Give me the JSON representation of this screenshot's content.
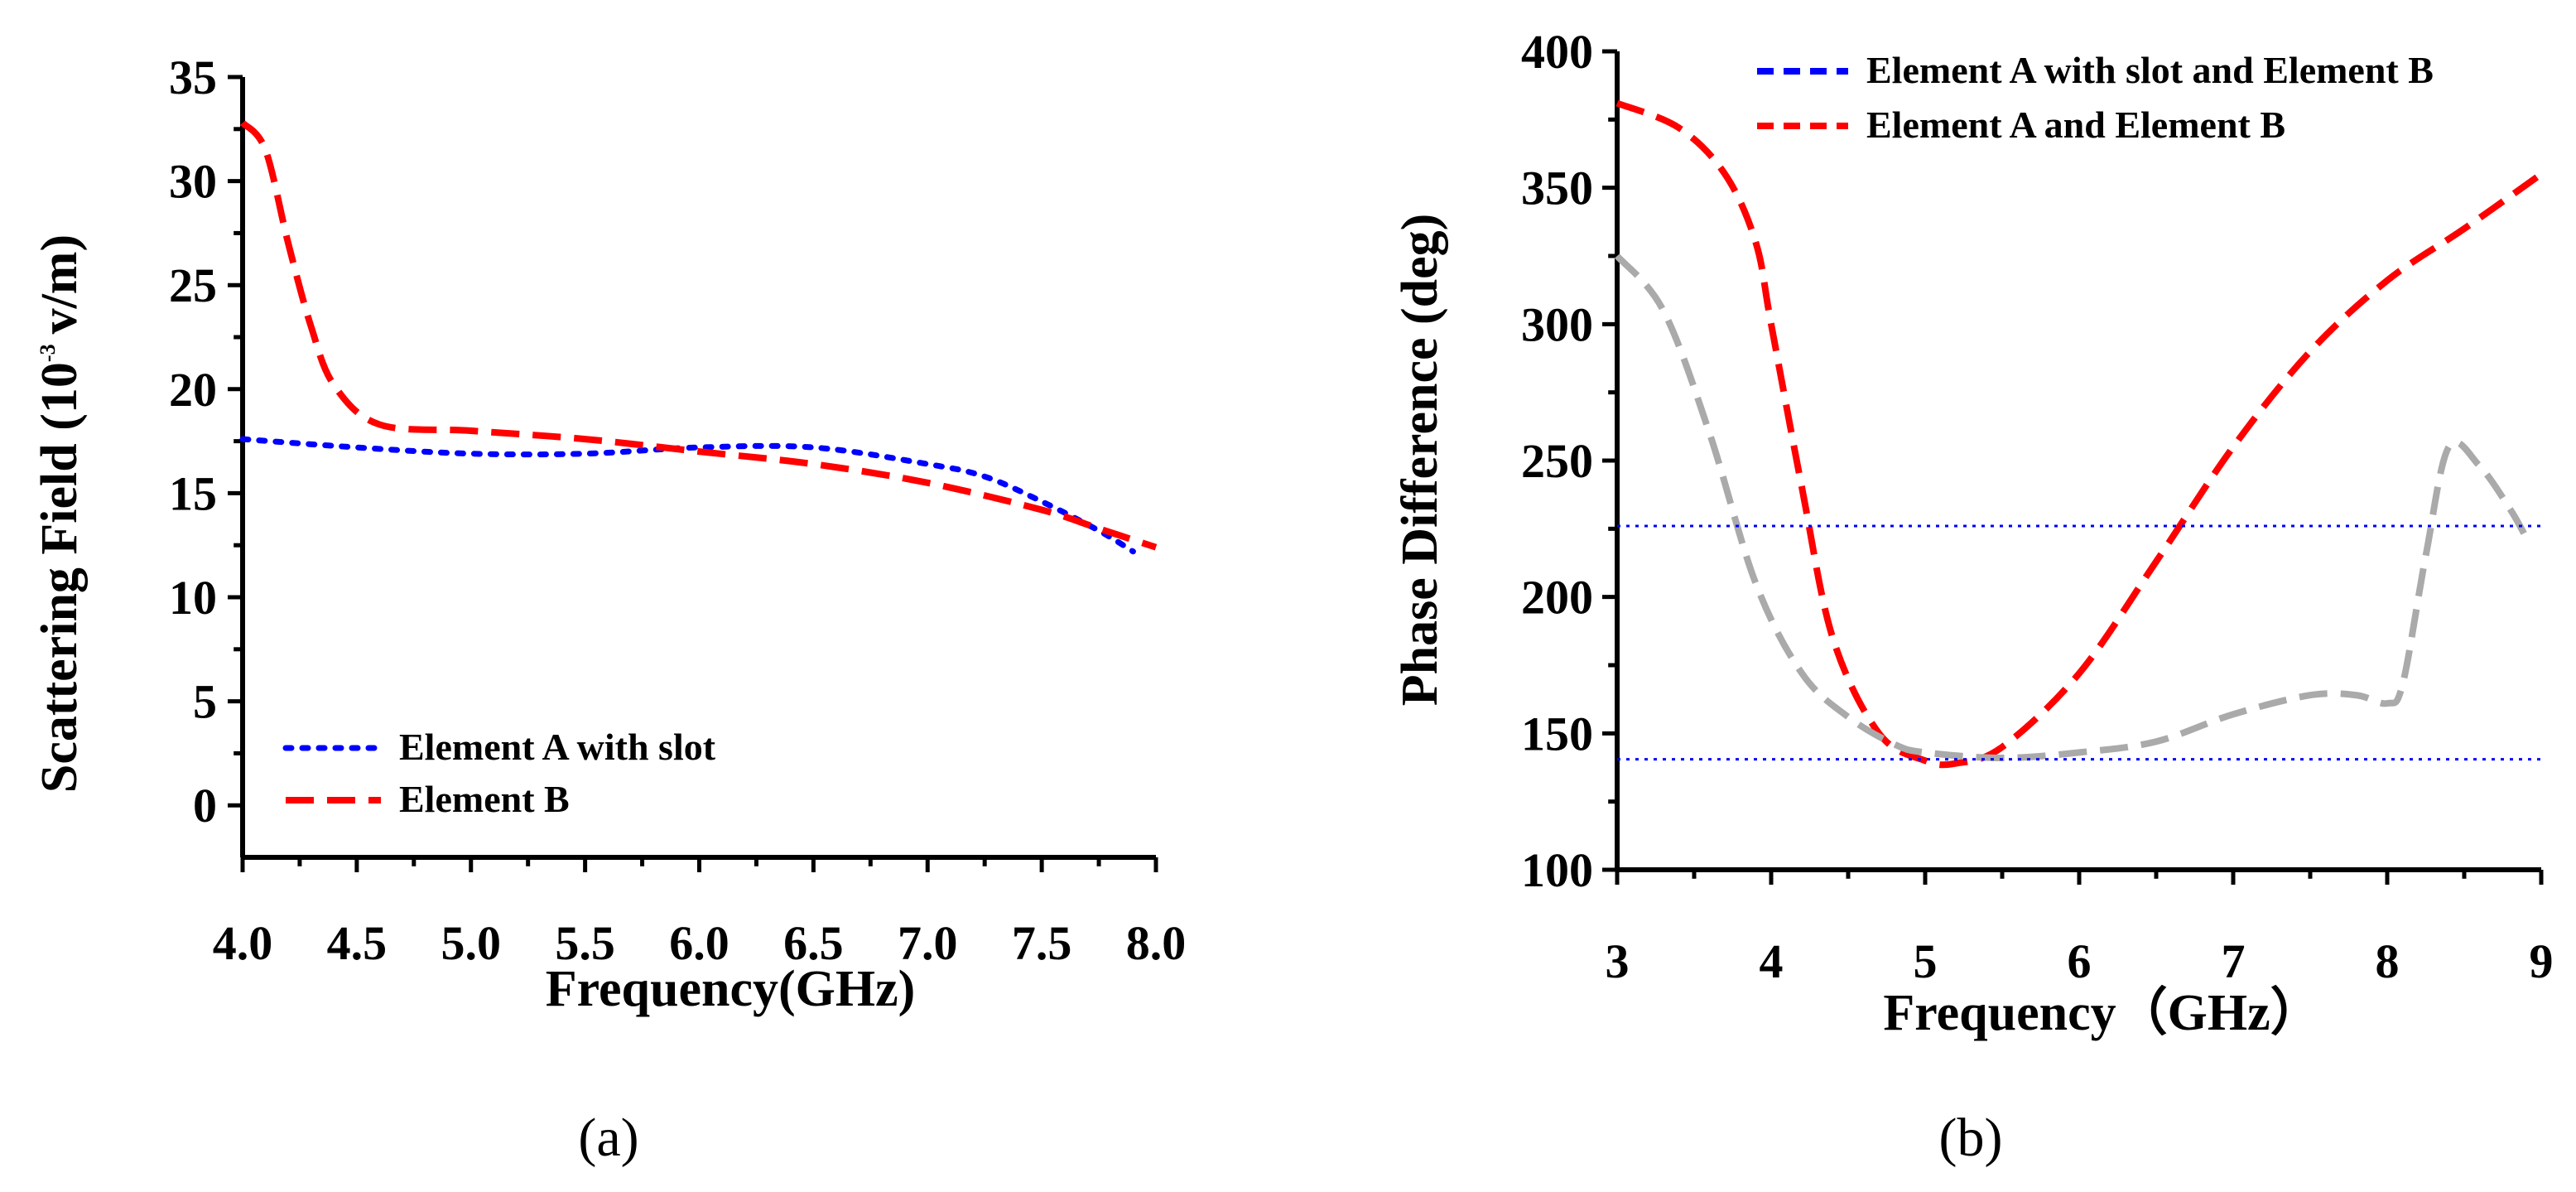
{
  "chart_data": [
    {
      "id": "a",
      "type": "line",
      "title": "",
      "caption": "(a)",
      "xlabel": "Frequency(GHz)",
      "ylabel_main": "Scattering Field (10",
      "ylabel_exp": "-3",
      "ylabel_unit": "v/m)",
      "xlim": [
        4.0,
        8.0
      ],
      "ylim": [
        -2.5,
        35
      ],
      "xticks": [
        4.0,
        4.5,
        5.0,
        5.5,
        6.0,
        6.5,
        7.0,
        7.5,
        8.0
      ],
      "xtick_labels": [
        "4.0",
        "4.5",
        "5.0",
        "5.5",
        "6.0",
        "6.5",
        "7.0",
        "7.5",
        "8.0"
      ],
      "yticks": [
        0,
        5,
        10,
        15,
        20,
        25,
        30,
        35
      ],
      "ytick_labels": [
        "0",
        "5",
        "10",
        "15",
        "20",
        "25",
        "30",
        "35"
      ],
      "legend_position": "bottom-left",
      "series": [
        {
          "name": "Element A with slot",
          "color": "#0000ff",
          "style": "dotted",
          "x": [
            4.0,
            4.5,
            5.0,
            5.5,
            6.0,
            6.5,
            7.0,
            7.25,
            7.5,
            7.75,
            7.9
          ],
          "y": [
            17.6,
            17.2,
            16.9,
            16.9,
            17.2,
            17.2,
            16.4,
            15.8,
            14.6,
            13.2,
            12.2
          ]
        },
        {
          "name": "Element B",
          "color": "#ff0000",
          "style": "dashed",
          "x": [
            4.0,
            4.1,
            4.2,
            4.3,
            4.4,
            4.6,
            5.0,
            5.5,
            6.0,
            6.5,
            7.0,
            7.5,
            7.75,
            8.0
          ],
          "y": [
            32.8,
            31.5,
            27.0,
            23.0,
            20.2,
            18.3,
            18.0,
            17.6,
            17.0,
            16.4,
            15.5,
            14.2,
            13.3,
            12.4
          ]
        }
      ]
    },
    {
      "id": "b",
      "type": "line",
      "title": "",
      "caption": "(b)",
      "xlabel": "Frequency（GHz）",
      "ylabel": "Phase Difference (deg)",
      "xlim": [
        3,
        9
      ],
      "ylim": [
        100,
        400
      ],
      "xticks": [
        3,
        4,
        5,
        6,
        7,
        8,
        9
      ],
      "xtick_labels": [
        "3",
        "4",
        "5",
        "6",
        "7",
        "8",
        "9"
      ],
      "yticks": [
        100,
        150,
        200,
        250,
        300,
        350,
        400
      ],
      "ytick_labels": [
        "100",
        "150",
        "200",
        "250",
        "300",
        "350",
        "400"
      ],
      "legend_position": "top-right",
      "series": [
        {
          "name": "Element A with slot and Element B",
          "color": "#0000ff",
          "style": "dashed",
          "legend": true,
          "x": [],
          "y": []
        },
        {
          "name": "Element A and Element B",
          "color": "#ff0000",
          "style": "dashed",
          "legend": true,
          "x": [
            3.0,
            3.4,
            3.7,
            3.9,
            4.0,
            4.2,
            4.4,
            4.7,
            5.0,
            5.2,
            5.5,
            6.0,
            6.5,
            7.0,
            7.5,
            8.0,
            8.5,
            9.0
          ],
          "y": [
            381,
            372,
            355,
            330,
            300,
            240,
            185,
            150,
            140,
            139,
            145,
            172,
            213,
            255,
            290,
            316,
            335,
            355
          ]
        },
        {
          "name": "gray-curve",
          "color": "#aaaaaa",
          "style": "dashed",
          "legend": false,
          "x": [
            3.0,
            3.3,
            3.6,
            3.9,
            4.2,
            4.5,
            4.8,
            5.0,
            5.5,
            6.0,
            6.5,
            7.0,
            7.5,
            7.8,
            8.0,
            8.1,
            8.25,
            8.4,
            8.6,
            8.8,
            8.9
          ],
          "y": [
            325,
            305,
            260,
            205,
            172,
            156,
            146,
            143,
            141,
            143,
            147,
            157,
            164,
            164,
            161,
            168,
            215,
            255,
            248,
            232,
            222
          ]
        },
        {
          "name": "upper-reference",
          "color": "#0000ff",
          "style": "fine-dotted",
          "legend": false,
          "x": [
            3.0,
            9.0
          ],
          "y": [
            226,
            226
          ]
        },
        {
          "name": "lower-reference",
          "color": "#0000ff",
          "style": "fine-dotted",
          "legend": false,
          "x": [
            3.0,
            9.0
          ],
          "y": [
            140.5,
            140.5
          ]
        }
      ]
    }
  ]
}
